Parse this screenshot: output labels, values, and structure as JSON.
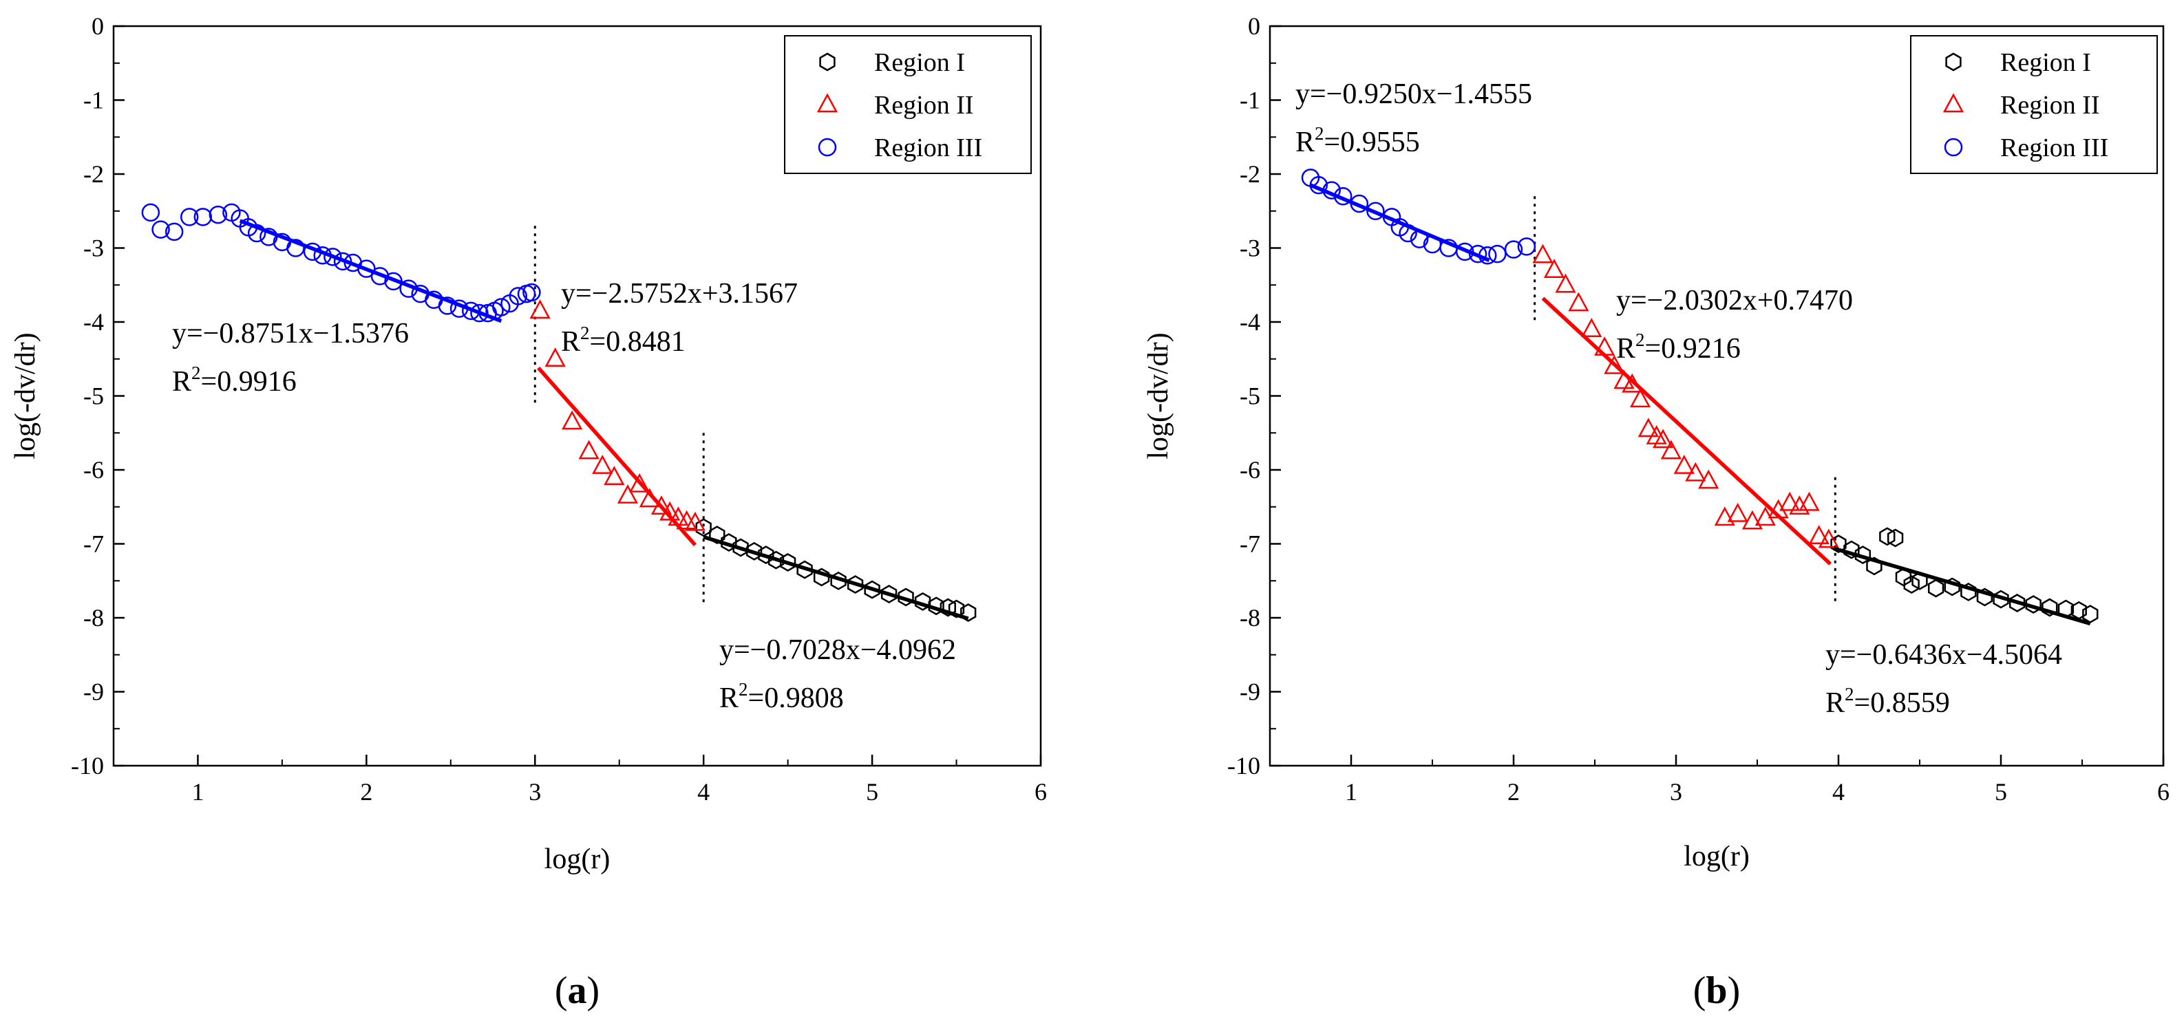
{
  "chart_data": [
    {
      "type": "scatter",
      "panel_label": "(a)",
      "panel_label_letter": "a",
      "xlabel": "log(r)",
      "ylabel": "log(-dv/dr)",
      "xlim": [
        0.5,
        6
      ],
      "ylim": [
        -10,
        0
      ],
      "xticks": [
        "1",
        "2",
        "3",
        "4",
        "5",
        "6"
      ],
      "yticks": [
        "0",
        "-1",
        "-2",
        "-3",
        "-4",
        "-5",
        "-6",
        "-7",
        "-8",
        "-9",
        "-10"
      ],
      "legend": [
        "Region I",
        "Region II",
        "Region III"
      ],
      "series": [
        {
          "name": "Region I",
          "marker": "hexagon",
          "color": "#000000",
          "x": [
            4.0,
            4.08,
            4.15,
            4.22,
            4.3,
            4.37,
            4.43,
            4.5,
            4.6,
            4.7,
            4.8,
            4.9,
            5.0,
            5.1,
            5.2,
            5.3,
            5.38,
            5.45,
            5.5,
            5.57
          ],
          "y": [
            -6.78,
            -6.88,
            -6.98,
            -7.05,
            -7.1,
            -7.15,
            -7.22,
            -7.25,
            -7.35,
            -7.45,
            -7.5,
            -7.55,
            -7.62,
            -7.68,
            -7.72,
            -7.78,
            -7.84,
            -7.86,
            -7.88,
            -7.93
          ]
        },
        {
          "name": "Region II",
          "marker": "triangle",
          "color": "#ff0000",
          "x": [
            3.03,
            3.12,
            3.22,
            3.32,
            3.4,
            3.47,
            3.55,
            3.62,
            3.68,
            3.75,
            3.8,
            3.85,
            3.9,
            3.95
          ],
          "y": [
            -3.85,
            -4.5,
            -5.35,
            -5.75,
            -5.95,
            -6.1,
            -6.35,
            -6.2,
            -6.4,
            -6.5,
            -6.58,
            -6.65,
            -6.7,
            -6.72
          ]
        },
        {
          "name": "Region III",
          "marker": "circle",
          "color": "#0000ff",
          "x": [
            0.72,
            0.78,
            0.86,
            0.95,
            1.03,
            1.12,
            1.2,
            1.25,
            1.3,
            1.35,
            1.42,
            1.5,
            1.58,
            1.68,
            1.74,
            1.8,
            1.86,
            1.92,
            2.0,
            2.08,
            2.16,
            2.25,
            2.32,
            2.4,
            2.48,
            2.55,
            2.62,
            2.67,
            2.72,
            2.76,
            2.8,
            2.85,
            2.9,
            2.95,
            2.98
          ],
          "y": [
            -2.52,
            -2.75,
            -2.78,
            -2.58,
            -2.58,
            -2.55,
            -2.52,
            -2.6,
            -2.72,
            -2.8,
            -2.85,
            -2.92,
            -3.0,
            -3.05,
            -3.1,
            -3.12,
            -3.18,
            -3.2,
            -3.28,
            -3.38,
            -3.45,
            -3.55,
            -3.62,
            -3.7,
            -3.78,
            -3.82,
            -3.85,
            -3.88,
            -3.88,
            -3.85,
            -3.8,
            -3.75,
            -3.65,
            -3.62,
            -3.6
          ]
        }
      ],
      "fits": [
        {
          "region": "Region III",
          "color": "#0000ff",
          "slope": -0.8751,
          "intercept": -1.5376,
          "x_range": [
            1.25,
            2.8
          ],
          "equation": "y=−0.8751x−1.5376",
          "r2_label": "R",
          "r2_exp": "2",
          "r2_value": "=0.9916"
        },
        {
          "region": "Region II",
          "color": "#ff0000",
          "slope": -2.5752,
          "intercept": 3.1567,
          "x_range": [
            3.02,
            3.95
          ],
          "equation": "y=−2.5752x+3.1567",
          "r2_label": "R",
          "r2_exp": "2",
          "r2_value": "=0.8481"
        },
        {
          "region": "Region I",
          "color": "#000000",
          "slope": -0.7028,
          "intercept": -4.0962,
          "x_range": [
            4.0,
            5.57
          ],
          "equation": "y=−0.7028x−4.0962",
          "r2_label": "R",
          "r2_exp": "2",
          "r2_value": "=0.9808"
        }
      ],
      "dividers": [
        3.0,
        4.0
      ]
    },
    {
      "type": "scatter",
      "panel_label": "(b)",
      "panel_label_letter": "b",
      "xlabel": "log(r)",
      "ylabel": "log(-dv/dr)",
      "xlim": [
        0.5,
        6
      ],
      "ylim": [
        -10,
        0
      ],
      "xticks": [
        "1",
        "2",
        "3",
        "4",
        "5",
        "6"
      ],
      "yticks": [
        "0",
        "-1",
        "-2",
        "-3",
        "-4",
        "-5",
        "-6",
        "-7",
        "-8",
        "-9",
        "-10"
      ],
      "legend": [
        "Region I",
        "Region II",
        "Region III"
      ],
      "series": [
        {
          "name": "Region I",
          "marker": "hexagon",
          "color": "#000000",
          "x": [
            4.0,
            4.08,
            4.15,
            4.22,
            4.3,
            4.35,
            4.4,
            4.45,
            4.5,
            4.6,
            4.7,
            4.8,
            4.9,
            5.0,
            5.1,
            5.2,
            5.3,
            5.4,
            5.48,
            5.55
          ],
          "y": [
            -7.0,
            -7.08,
            -7.15,
            -7.3,
            -6.9,
            -6.92,
            -7.45,
            -7.55,
            -7.5,
            -7.6,
            -7.58,
            -7.65,
            -7.72,
            -7.75,
            -7.8,
            -7.82,
            -7.86,
            -7.88,
            -7.9,
            -7.95
          ]
        },
        {
          "name": "Region II",
          "marker": "triangle",
          "color": "#ff0000",
          "x": [
            2.18,
            2.25,
            2.32,
            2.4,
            2.48,
            2.56,
            2.62,
            2.68,
            2.73,
            2.78,
            2.83,
            2.88,
            2.92,
            2.97,
            3.05,
            3.12,
            3.2,
            3.3,
            3.38,
            3.47,
            3.55,
            3.63,
            3.7,
            3.76,
            3.82,
            3.88,
            3.94
          ],
          "y": [
            -3.1,
            -3.3,
            -3.5,
            -3.75,
            -4.1,
            -4.35,
            -4.6,
            -4.8,
            -4.85,
            -5.05,
            -5.45,
            -5.55,
            -5.6,
            -5.75,
            -5.95,
            -6.05,
            -6.15,
            -6.65,
            -6.6,
            -6.7,
            -6.65,
            -6.55,
            -6.45,
            -6.5,
            -6.45,
            -6.9,
            -6.95
          ]
        },
        {
          "name": "Region III",
          "marker": "circle",
          "color": "#0000ff",
          "x": [
            0.75,
            0.8,
            0.88,
            0.95,
            1.05,
            1.15,
            1.25,
            1.3,
            1.35,
            1.42,
            1.5,
            1.6,
            1.7,
            1.78,
            1.84,
            1.9,
            2.0,
            2.08
          ],
          "y": [
            -2.05,
            -2.15,
            -2.22,
            -2.3,
            -2.4,
            -2.5,
            -2.58,
            -2.72,
            -2.8,
            -2.88,
            -2.95,
            -3.0,
            -3.05,
            -3.08,
            -3.1,
            -3.08,
            -3.02,
            -2.98
          ]
        }
      ],
      "fits": [
        {
          "region": "Region III",
          "color": "#0000ff",
          "slope": -0.925,
          "intercept": -1.4555,
          "x_range": [
            0.75,
            1.85
          ],
          "equation": "y=−0.9250x−1.4555",
          "r2_label": "R",
          "r2_exp": "2",
          "r2_value": "=0.9555"
        },
        {
          "region": "Region II",
          "color": "#ff0000",
          "slope": -2.0302,
          "intercept": 0.747,
          "x_range": [
            2.18,
            3.95
          ],
          "equation": "y=−2.0302x+0.7470",
          "r2_label": "R",
          "r2_exp": "2",
          "r2_value": "=0.9216"
        },
        {
          "region": "Region I",
          "color": "#000000",
          "slope": -0.6436,
          "intercept": -4.5064,
          "x_range": [
            3.97,
            5.55
          ],
          "equation": "y=−0.6436x−4.5064",
          "r2_label": "R",
          "r2_exp": "2",
          "r2_value": "=0.8559"
        }
      ],
      "dividers": [
        2.13,
        3.98
      ]
    }
  ]
}
